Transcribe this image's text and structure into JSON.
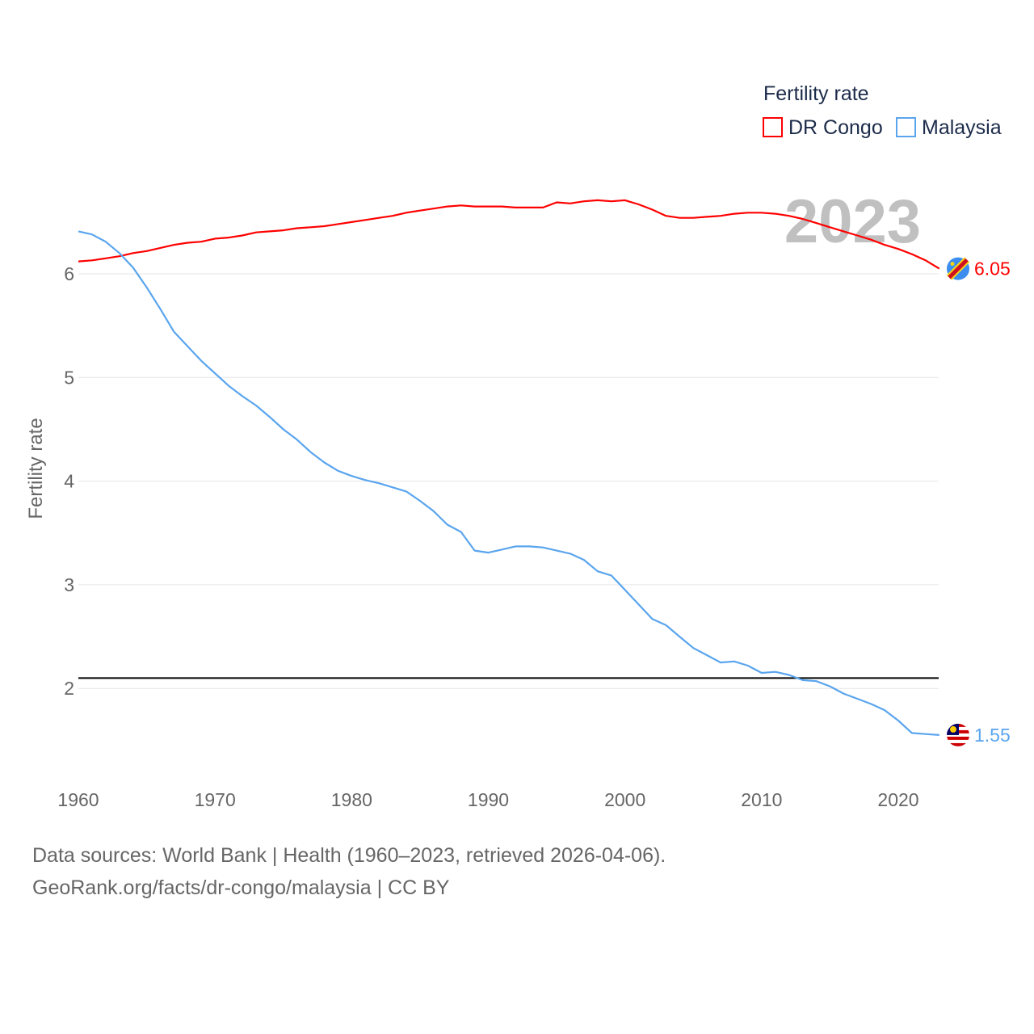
{
  "chart_data": {
    "type": "line",
    "title": "",
    "xlabel": "",
    "ylabel": "Fertility rate",
    "xlim": [
      1960,
      2023
    ],
    "ylim": [
      1.0,
      6.9
    ],
    "x_ticks": [
      "1960",
      "1970",
      "1980",
      "1990",
      "2000",
      "2010",
      "2020"
    ],
    "y_ticks": [
      "2",
      "3",
      "4",
      "5",
      "6"
    ],
    "grid": true,
    "legend": {
      "title": "Fertility rate",
      "placement": "top-right"
    },
    "year_label": "2023",
    "reference_line": {
      "value": 2.1,
      "color": "#000000"
    },
    "x": [
      1960,
      1961,
      1962,
      1963,
      1964,
      1965,
      1966,
      1967,
      1968,
      1969,
      1970,
      1971,
      1972,
      1973,
      1974,
      1975,
      1976,
      1977,
      1978,
      1979,
      1980,
      1981,
      1982,
      1983,
      1984,
      1985,
      1986,
      1987,
      1988,
      1989,
      1990,
      1991,
      1992,
      1993,
      1994,
      1995,
      1996,
      1997,
      1998,
      1999,
      2000,
      2001,
      2002,
      2003,
      2004,
      2005,
      2006,
      2007,
      2008,
      2009,
      2010,
      2011,
      2012,
      2013,
      2014,
      2015,
      2016,
      2017,
      2018,
      2019,
      2020,
      2021,
      2022,
      2023
    ],
    "series": [
      {
        "name": "DR Congo",
        "color": "#ff0000",
        "end_label": "6.05",
        "values": [
          6.12,
          6.13,
          6.15,
          6.17,
          6.2,
          6.22,
          6.25,
          6.28,
          6.3,
          6.31,
          6.34,
          6.35,
          6.37,
          6.4,
          6.41,
          6.42,
          6.44,
          6.45,
          6.46,
          6.48,
          6.5,
          6.52,
          6.54,
          6.56,
          6.59,
          6.61,
          6.63,
          6.65,
          6.66,
          6.65,
          6.65,
          6.65,
          6.64,
          6.64,
          6.64,
          6.69,
          6.68,
          6.7,
          6.71,
          6.7,
          6.71,
          6.67,
          6.62,
          6.56,
          6.54,
          6.54,
          6.55,
          6.56,
          6.58,
          6.59,
          6.59,
          6.58,
          6.56,
          6.53,
          6.49,
          6.45,
          6.41,
          6.37,
          6.33,
          6.28,
          6.24,
          6.19,
          6.13,
          6.05
        ]
      },
      {
        "name": "Malaysia",
        "color": "#5aa5ee",
        "end_label": "1.55",
        "values": [
          6.41,
          6.38,
          6.31,
          6.2,
          6.06,
          5.87,
          5.66,
          5.44,
          5.3,
          5.16,
          5.04,
          4.92,
          4.82,
          4.73,
          4.62,
          4.5,
          4.4,
          4.28,
          4.18,
          4.1,
          4.05,
          4.01,
          3.98,
          3.94,
          3.9,
          3.81,
          3.71,
          3.58,
          3.51,
          3.33,
          3.31,
          3.34,
          3.37,
          3.37,
          3.36,
          3.33,
          3.3,
          3.24,
          3.13,
          3.09,
          2.95,
          2.81,
          2.67,
          2.61,
          2.5,
          2.39,
          2.32,
          2.25,
          2.26,
          2.22,
          2.15,
          2.16,
          2.13,
          2.08,
          2.07,
          2.02,
          1.95,
          1.9,
          1.85,
          1.79,
          1.69,
          1.57,
          1.56,
          1.55
        ]
      }
    ]
  },
  "footer": {
    "line1": "Data sources: World Bank | Health (1960–2023, retrieved 2026-04-06).",
    "line2": "GeoRank.org/facts/dr-congo/malaysia | CC BY"
  }
}
